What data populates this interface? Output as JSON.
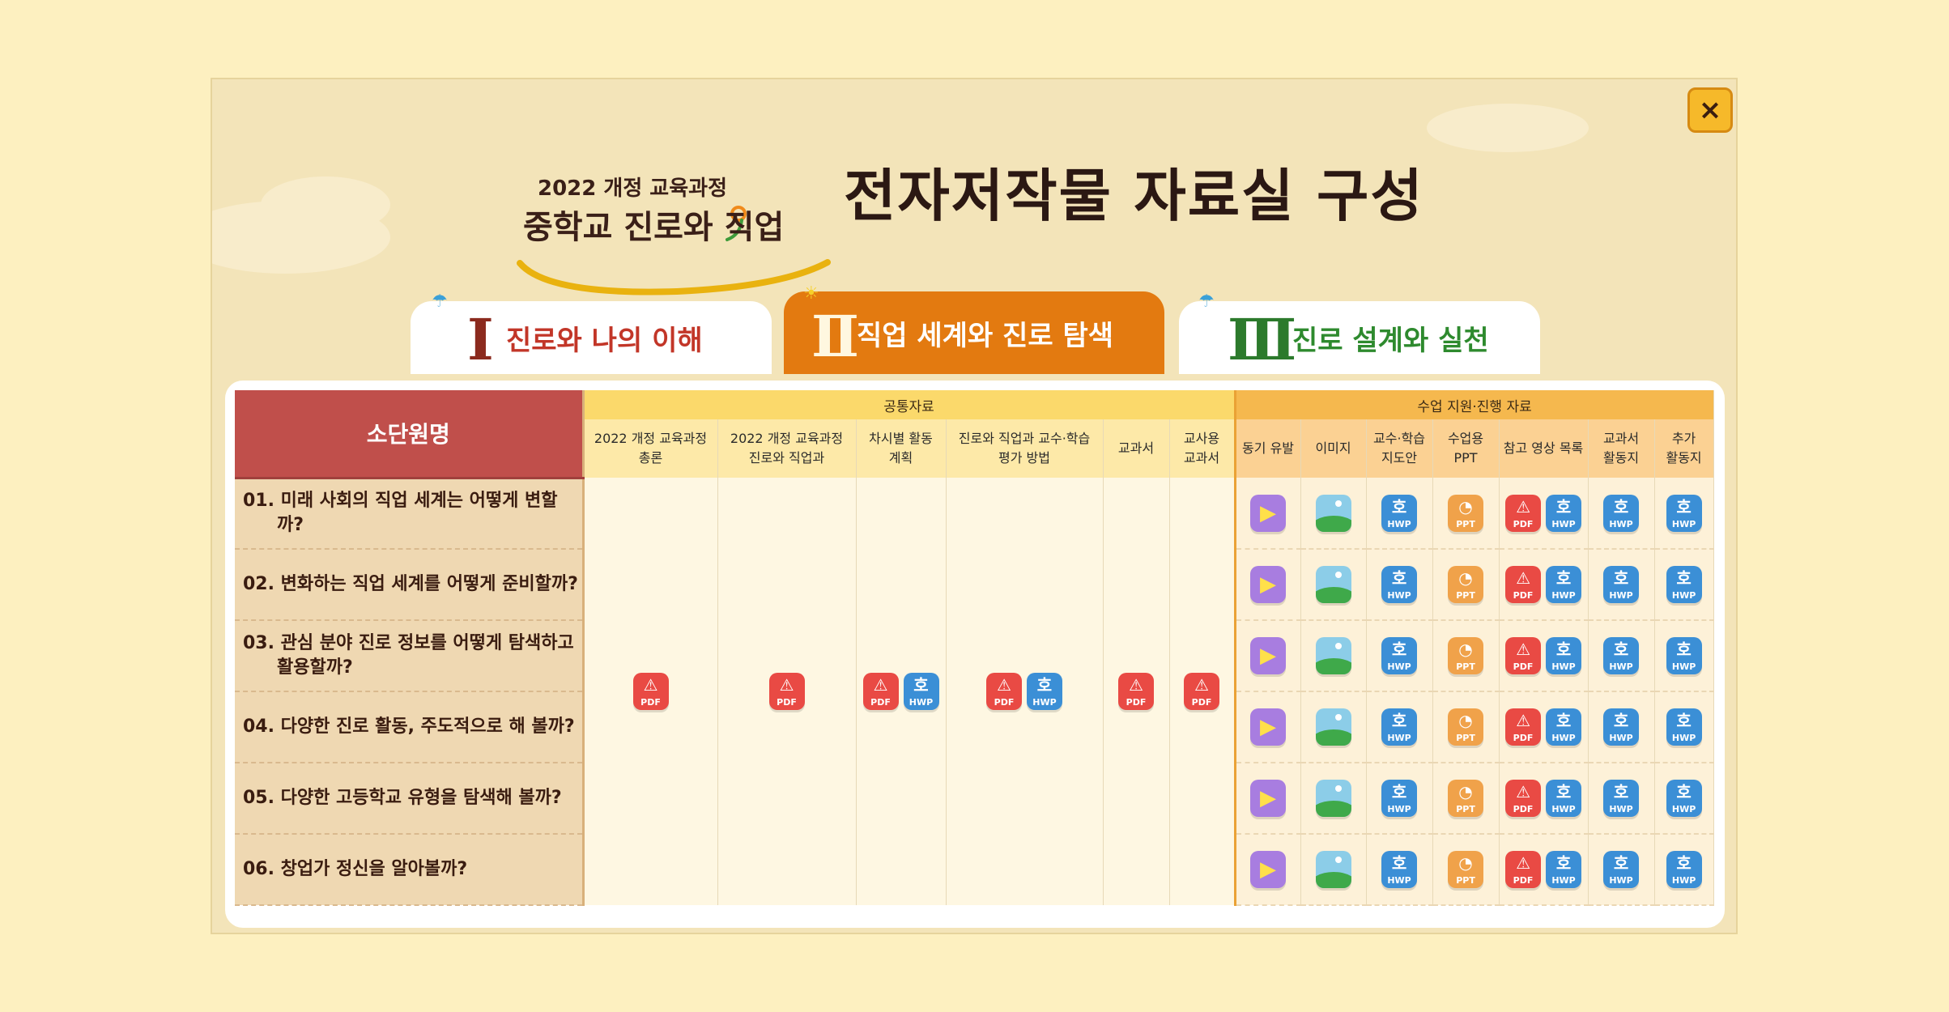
{
  "header": {
    "sub_title": "2022 개정 교육과정",
    "book_title": "중학교 진로와 직업",
    "main_title": "전자저작물 자료실 구성"
  },
  "close": {
    "icon": "close-icon",
    "label": "×"
  },
  "tabs": [
    {
      "num": "Ⅰ",
      "label": "진로와 나의 이해",
      "active": false
    },
    {
      "num": "Ⅱ",
      "label": "직업 세계와 진로 탐색",
      "active": true
    },
    {
      "num": "Ⅲ",
      "label": "진로 설계와 실천",
      "active": false
    }
  ],
  "table": {
    "unit_header": "소단원명",
    "group_common": "공통자료",
    "group_class": "수업 지원·진행 자료",
    "common_cols": [
      {
        "l1": "2022 개정 교육과정",
        "l2": "총론"
      },
      {
        "l1": "2022 개정 교육과정",
        "l2": "진로와 직업과"
      },
      {
        "l1": "차시별 활동",
        "l2": "계획"
      },
      {
        "l1": "진로와 직업과 교수·학습",
        "l2": "평가 방법"
      },
      {
        "l1": "교과서",
        "l2": ""
      },
      {
        "l1": "교사용",
        "l2": "교과서"
      }
    ],
    "class_cols": [
      {
        "l1": "동기 유발",
        "l2": ""
      },
      {
        "l1": "이미지",
        "l2": ""
      },
      {
        "l1": "교수·학습",
        "l2": "지도안"
      },
      {
        "l1": "수업용",
        "l2": "PPT"
      },
      {
        "l1": "참고 영상 목록",
        "l2": ""
      },
      {
        "l1": "교과서",
        "l2": "활동지"
      },
      {
        "l1": "추가",
        "l2": "활동지"
      }
    ],
    "rows": [
      "01. 미래 사회의 직업 세계는 어떻게 변할까?",
      "02. 변화하는 직업 세계를 어떻게 준비할까?",
      "03. 관심 분야 진로 정보를 어떻게 탐색하고 활용할까?",
      "04. 다양한 진로 활동, 주도적으로 해 볼까?",
      "05. 다양한 고등학교 유형을 탐색해 볼까?",
      "06. 창업가 정신을 알아볼까?"
    ],
    "common_files": [
      [
        "PDF"
      ],
      [
        "PDF"
      ],
      [
        "PDF",
        "HWP"
      ],
      [
        "PDF",
        "HWP"
      ],
      [
        "PDF"
      ],
      [
        "PDF"
      ]
    ],
    "class_files": [
      [
        "VIDEO"
      ],
      [
        "IMAGE"
      ],
      [
        "HWP"
      ],
      [
        "PPT"
      ],
      [
        "PDF",
        "HWP"
      ],
      [
        "HWP"
      ],
      [
        "HWP"
      ]
    ]
  },
  "file_labels": {
    "PDF": "PDF",
    "HWP": "HWP",
    "PPT": "PPT"
  },
  "colors": {
    "accent_tab": "#e37a10",
    "unit_header": "#c04f4b",
    "common_header": "#fbd96b",
    "class_header": "#f5b84e"
  }
}
